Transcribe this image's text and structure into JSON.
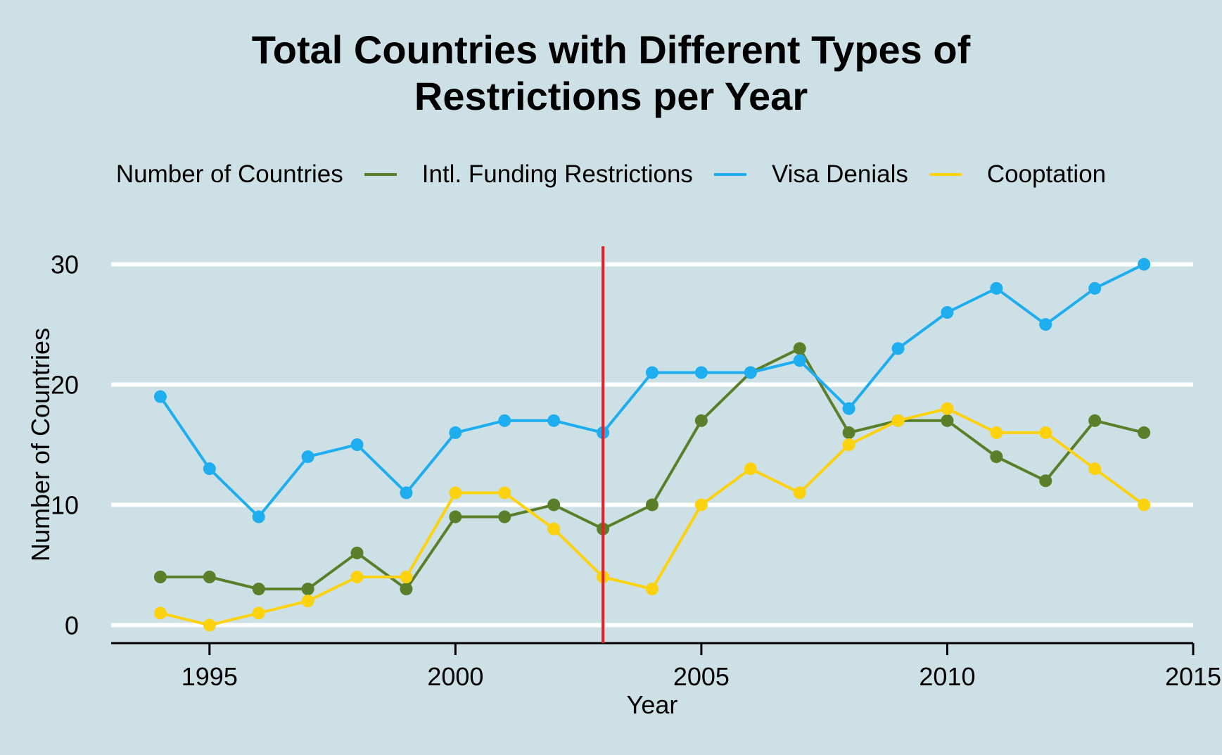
{
  "chart_data": {
    "type": "line",
    "title_line1": "Total Countries with Different Types of",
    "title_line2": "Restrictions per Year",
    "xlabel": "Year",
    "ylabel": "Number of Countries",
    "legend_title": "Number of Countries",
    "legend_position": "top",
    "grid": true,
    "xlim": [
      1993,
      2015
    ],
    "ylim": [
      -1.5,
      31.5
    ],
    "x_ticks": [
      1995,
      2000,
      2005,
      2010,
      2015
    ],
    "y_ticks": [
      0,
      10,
      20,
      30
    ],
    "x": [
      1994,
      1995,
      1996,
      1997,
      1998,
      1999,
      2000,
      2001,
      2002,
      2003,
      2004,
      2005,
      2006,
      2007,
      2008,
      2009,
      2010,
      2011,
      2012,
      2013,
      2014
    ],
    "series": [
      {
        "name": "Intl. Funding Restrictions",
        "color": "#5a7f2b",
        "values": [
          4,
          4,
          3,
          3,
          6,
          3,
          9,
          9,
          10,
          8,
          10,
          17,
          21,
          23,
          16,
          17,
          17,
          14,
          12,
          17,
          16
        ]
      },
      {
        "name": "Visa Denials",
        "color": "#1eaef0",
        "values": [
          19,
          13,
          9,
          14,
          15,
          11,
          16,
          17,
          17,
          16,
          21,
          21,
          21,
          22,
          18,
          23,
          26,
          28,
          25,
          28,
          30
        ]
      },
      {
        "name": "Cooptation",
        "color": "#fcd20f",
        "values": [
          1,
          0,
          1,
          2,
          4,
          4,
          11,
          11,
          8,
          4,
          3,
          10,
          13,
          11,
          15,
          17,
          18,
          16,
          16,
          13,
          10
        ]
      }
    ],
    "vline": {
      "x": 2003,
      "color": "#ee1c24"
    },
    "grid_color": "#ffffff",
    "axis_color": "#000000"
  }
}
